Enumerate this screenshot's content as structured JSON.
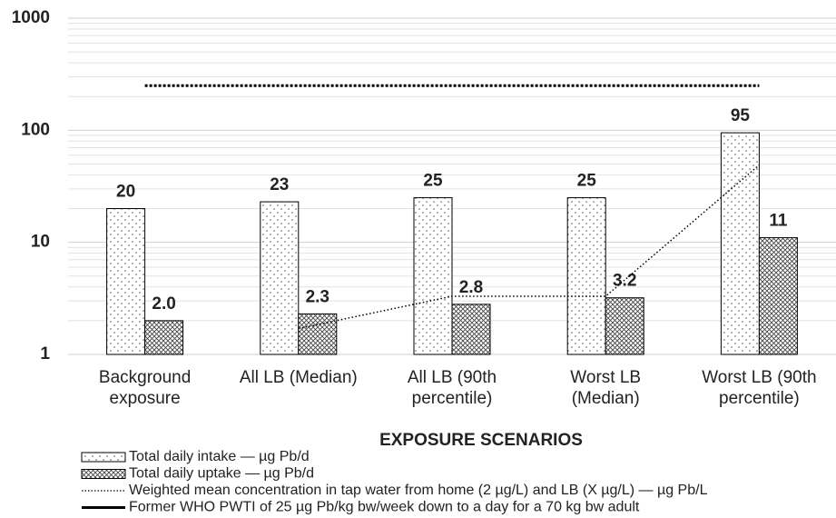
{
  "chart_data": {
    "type": "bar",
    "x_label": "EXPOSURE SCENARIOS",
    "categories": [
      "Background\nexposure",
      "All LB (Median)",
      "All LB (90th\npercentile)",
      "Worst LB\n(Median)",
      "Worst LB (90th\npercentile)"
    ],
    "ylog": true,
    "ylim": [
      1,
      1000
    ],
    "yticks": [
      1,
      10,
      100,
      1000
    ],
    "grid": true,
    "series": [
      {
        "name": "Total daily intake — µg Pb/d",
        "type": "bar",
        "color": "#000000",
        "pattern": "dots",
        "values": [
          20,
          23,
          25,
          25,
          95
        ]
      },
      {
        "name": "Total daily uptake — µg Pb/d",
        "type": "bar",
        "color": "#000000",
        "pattern": "crosshatch",
        "values": [
          2.0,
          2.3,
          2.8,
          3.2,
          11
        ],
        "value_labels": [
          "2.0",
          "2.3",
          "2.8",
          "3.2",
          "11"
        ]
      },
      {
        "name": "Weighted mean concentration in tap water from home (2 µg/L) and LB (X µg/L) — µg Pb/L",
        "type": "line",
        "color": "#000000",
        "style": "dotted",
        "values": [
          null,
          1.7,
          3.3,
          3.3,
          49
        ]
      },
      {
        "name": "Former WHO PWTI of 25 µg Pb/kg bw/week down to a day for a 70 kg bw adult",
        "type": "line",
        "color": "#000000",
        "style": "solid",
        "values": [
          250,
          250,
          250,
          250,
          250
        ]
      }
    ]
  }
}
